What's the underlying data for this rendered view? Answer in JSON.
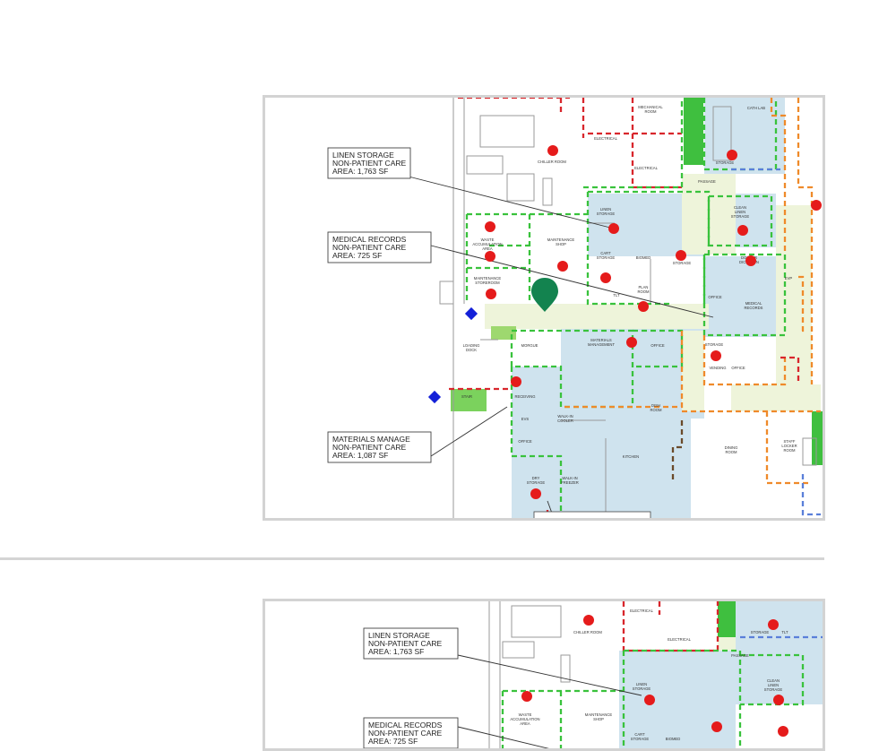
{
  "colors": {
    "non_patient_fill": "#cfe3ee",
    "corridor_fill": "#eef4da",
    "marker_red": "#e51b1b",
    "pin_green": "#13834f",
    "diamond_blue": "#1320d8",
    "dash_green": "#39c23c",
    "dash_red": "#d8262c",
    "dash_orange": "#ef8a2a",
    "dash_brown": "#6a4a2a",
    "dash_blue": "#5a7fd9",
    "divider": "#d4d4d4",
    "frame_border": "#d3d3d3"
  },
  "icons": [
    "location-pin-icon",
    "red-dot-marker-icon",
    "blue-diamond-marker-icon"
  ],
  "plan_top": {
    "callouts": [
      {
        "line1": "LINEN STORAGE",
        "line2": "NON-PATIENT CARE",
        "line3": "AREA: 1,763 SF"
      },
      {
        "line1": "MEDICAL RECORDS",
        "line2": "NON-PATIENT CARE",
        "line3": "AREA: 725 SF"
      },
      {
        "line1": "MATERIALS MANAGE",
        "line2": "NON-PATIENT CARE",
        "line3": "AREA: 1,087 SF"
      }
    ],
    "rooms": {
      "mechanical": "MECHANICAL",
      "mechanical2": "ROOM",
      "cath_lab": "CATH LAB",
      "electrical_a": "ELECTRICAL",
      "electrical_b": "ELECTRICAL",
      "chiller": "CHILLER ROOM",
      "storage_top": "STORAGE",
      "passage": "PASSAGE",
      "linen1": "LINEN",
      "linen2": "STORAGE",
      "clean1": "CLEAN",
      "clean2": "LINEN",
      "clean3": "STORAGE",
      "waste1": "WASTE",
      "waste2": "ACCUMULATION",
      "waste3": "AREA",
      "maint_shop1": "MAINTENANCE",
      "maint_shop2": "SHOP",
      "cart1": "CART",
      "cart2": "STORAGE",
      "biomed": "BIOMED",
      "storage_mid": "STORAGE",
      "doctor1": "DOCTOR",
      "doctor2": "DICTATION",
      "maint_store1": "MAINTENANCE",
      "maint_store2": "STOREROOM",
      "tlt": "TLT",
      "plan1": "PLAN",
      "plan2": "ROOM",
      "office_mr": "OFFICE",
      "medrec1": "MEDICAL",
      "medrec2": "RECORDS",
      "evp": "EVP",
      "loading1": "LOADING",
      "loading2": "DOCK",
      "morgue": "MORGUE",
      "matmgmt1": "MATERIALS",
      "matmgmt2": "MANAGEMENT",
      "office_mm": "OFFICE",
      "storage_r": "STORAGE",
      "vending": "VENDING",
      "office_v": "OFFICE",
      "stair": "STAIR",
      "receiving": "RECEIVING",
      "evs": "EVS",
      "walkin_cool1": "WALK-IN",
      "walkin_cool2": "COOLER",
      "dish1": "DISH",
      "dish2": "ROOM",
      "office_k": "OFFICE",
      "kitchen": "KITCHEN",
      "dining1": "DINING",
      "dining2": "ROOM",
      "staff1": "STAFF",
      "staff2": "LOCKER",
      "staff3": "ROOM",
      "dry1": "DRY",
      "dry2": "STORAGE",
      "freezer1": "WALK-IN",
      "freezer2": "FREEZER"
    }
  },
  "plan_bottom": {
    "callouts": [
      {
        "line1": "LINEN STORAGE",
        "line2": "NON-PATIENT CARE",
        "line3": "AREA: 1,763 SF"
      },
      {
        "line1": "MEDICAL RECORDS",
        "line2": "NON-PATIENT CARE",
        "line3": "AREA: 725 SF"
      }
    ],
    "rooms": {
      "electrical_a": "ELECTRICAL",
      "electrical_b": "ELECTRICAL",
      "chiller": "CHILLER ROOM",
      "storage": "STORAGE",
      "tlt": "TLT",
      "passage": "PASSAGE",
      "linen1": "LINEN",
      "linen2": "STORAGE",
      "clean1": "CLEAN",
      "clean2": "LINEN",
      "clean3": "STORAGE",
      "waste1": "WASTE",
      "waste2": "ACCUMULATION",
      "waste3": "AREA",
      "maint1": "MAINTENANCE",
      "maint2": "SHOP",
      "cart1": "CART",
      "cart2": "STORAGE",
      "biomed": "BIOMED"
    }
  }
}
